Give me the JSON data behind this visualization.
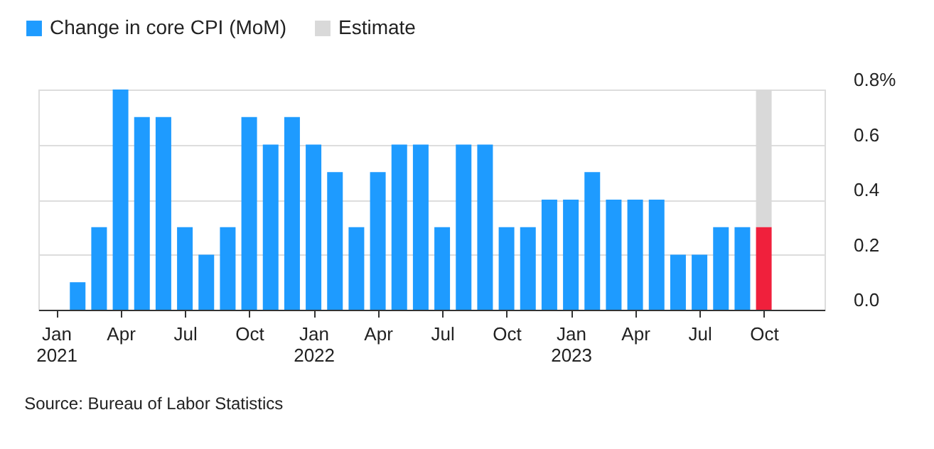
{
  "chart_data": {
    "type": "bar",
    "stacked": true,
    "categories": [
      "Jan 2021",
      null,
      null,
      "Apr",
      null,
      null,
      "Jul",
      null,
      null,
      "Oct",
      null,
      null,
      "Jan 2022",
      null,
      null,
      "Apr",
      null,
      null,
      "Jul",
      null,
      null,
      "Oct",
      null,
      null,
      "Jan 2023",
      null,
      null,
      "Apr",
      null,
      null,
      "Jul",
      null,
      null,
      "Oct"
    ],
    "series": [
      {
        "name": "Change in core CPI (MoM)",
        "color": "#1e9bff",
        "colors": [
          "#1e9bff",
          "#1e9bff",
          "#1e9bff",
          "#1e9bff",
          "#1e9bff",
          "#1e9bff",
          "#1e9bff",
          "#1e9bff",
          "#1e9bff",
          "#1e9bff",
          "#1e9bff",
          "#1e9bff",
          "#1e9bff",
          "#1e9bff",
          "#1e9bff",
          "#1e9bff",
          "#1e9bff",
          "#1e9bff",
          "#1e9bff",
          "#1e9bff",
          "#1e9bff",
          "#1e9bff",
          "#1e9bff",
          "#1e9bff",
          "#1e9bff",
          "#1e9bff",
          "#1e9bff",
          "#1e9bff",
          "#1e9bff",
          "#1e9bff",
          "#1e9bff",
          "#1e9bff",
          "#1e9bff",
          "#f0203c"
        ],
        "values": [
          0.0,
          0.1,
          0.3,
          0.8,
          0.7,
          0.7,
          0.3,
          0.2,
          0.3,
          0.7,
          0.6,
          0.7,
          0.6,
          0.5,
          0.3,
          0.5,
          0.6,
          0.6,
          0.3,
          0.6,
          0.6,
          0.3,
          0.3,
          0.4,
          0.4,
          0.5,
          0.4,
          0.4,
          0.4,
          0.2,
          0.2,
          0.3,
          0.3,
          0.3
        ]
      },
      {
        "name": "Estimate",
        "color": "#d9d9d9",
        "values": [
          null,
          null,
          null,
          null,
          null,
          null,
          null,
          null,
          null,
          null,
          null,
          null,
          null,
          null,
          null,
          null,
          null,
          null,
          null,
          null,
          null,
          null,
          null,
          null,
          null,
          null,
          null,
          null,
          null,
          null,
          null,
          null,
          null,
          0.5
        ]
      }
    ],
    "ylim": [
      0,
      0.8
    ],
    "yticks": [
      {
        "value": 0,
        "label": "0.0"
      },
      0.2,
      0.4,
      0.6,
      {
        "value": 0.8,
        "label": "0.8%"
      }
    ],
    "grid": "y",
    "legend": "top left",
    "annotations": [
      "Source: Bureau of Labor Statistics"
    ]
  }
}
